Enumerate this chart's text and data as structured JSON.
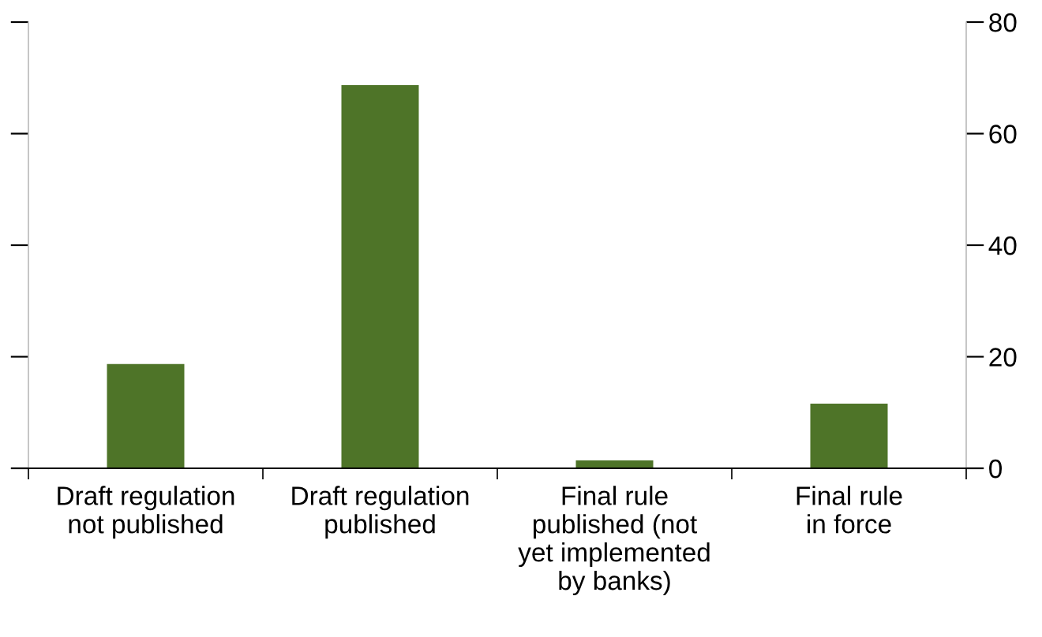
{
  "chart_data": {
    "type": "bar",
    "categories": [
      "Draft regulation\nnot published",
      "Draft regulation\npublished",
      "Final rule\npublished (not\nyet implemented\nby banks)",
      "Final rule\nin force"
    ],
    "values": [
      18.7,
      68.7,
      1.4,
      11.6
    ],
    "color": "#4e7428",
    "ylim": [
      0,
      80
    ],
    "yticks": [
      0,
      20,
      40,
      60,
      80
    ],
    "grid": false
  }
}
